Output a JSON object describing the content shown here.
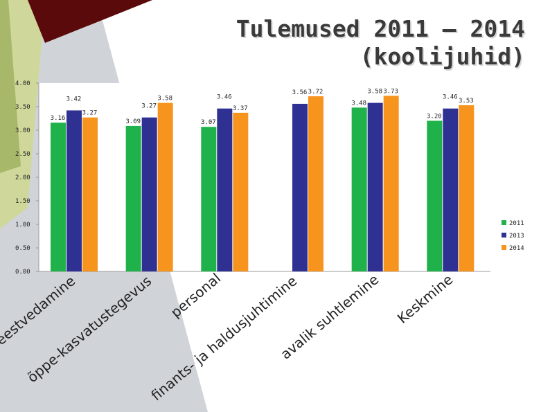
{
  "title": {
    "line1": "Tulemused 2011 – 2014",
    "line2": "(koolijuhid)"
  },
  "colors": {
    "2011": "#1fb24a",
    "2013": "#2e3192",
    "2014": "#f7941d",
    "decor_dark_red": "#5a0a0a",
    "decor_olive": "#cfd89a",
    "decor_green": "#a8b86a",
    "decor_gray": "#d0d4d8"
  },
  "chart_data": {
    "type": "bar",
    "categories": [
      "eestvedamine",
      "õppe-kasvatustegevus",
      "personal",
      "finants- ja haldusjuhtimine",
      "avalik suhtlemine",
      "Keskmine"
    ],
    "series": [
      {
        "name": "2011",
        "values": [
          3.16,
          3.09,
          3.07,
          null,
          3.48,
          3.2
        ]
      },
      {
        "name": "2013",
        "values": [
          3.42,
          3.27,
          3.46,
          3.56,
          3.58,
          3.46
        ]
      },
      {
        "name": "2014",
        "values": [
          3.27,
          3.58,
          3.37,
          3.72,
          3.73,
          3.53
        ]
      }
    ],
    "ylim": [
      0,
      4
    ],
    "yticks": [
      "0.00",
      "0.50",
      "1.00",
      "1.50",
      "2.00",
      "2.50",
      "3.00",
      "3.50",
      "4.00"
    ],
    "legend": [
      "2011",
      "2013",
      "2014"
    ],
    "legend_position": "right",
    "grid": false,
    "data_labels": true
  }
}
